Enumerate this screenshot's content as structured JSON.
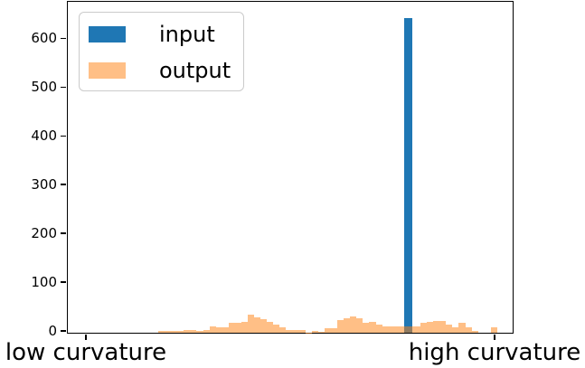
{
  "chart_data": {
    "type": "bar",
    "subtype": "histogram",
    "title": "",
    "xlabel": "",
    "ylabel": "",
    "grid": false,
    "ylim": [
      0,
      675
    ],
    "yticks": [
      0,
      100,
      200,
      300,
      400,
      500,
      600
    ],
    "xticks": [
      {
        "pos": 0.0,
        "label": "low curvature"
      },
      {
        "pos": 1.0,
        "label": "high curvature"
      }
    ],
    "legend": {
      "position": "upper left",
      "entries": [
        {
          "label": "input",
          "swatch": "#1f77b4"
        },
        {
          "label": "output",
          "swatch": "#ffbf86"
        }
      ]
    },
    "series": [
      {
        "name": "input",
        "color": "#1f77b4",
        "description": "single tall spike near high curvature",
        "bins": {
          "start_frac": 0.7788,
          "bin_frac": 0.0199,
          "heights": [
            645
          ]
        }
      },
      {
        "name": "output",
        "color": "rgba(255,127,14,0.5)",
        "description": "broad low histogram of counts along curvature axis",
        "bins": {
          "start_frac": 0.177,
          "bin_frac": 0.01565,
          "heights": [
            3,
            3,
            4,
            4,
            6,
            5,
            4,
            5,
            13,
            12,
            11,
            20,
            20,
            22,
            38,
            32,
            28,
            22,
            16,
            11,
            6,
            5,
            5,
            1,
            4,
            2,
            9,
            10,
            26,
            30,
            33,
            29,
            20,
            23,
            16,
            13,
            13,
            13,
            13,
            13,
            13,
            20,
            22,
            24,
            24,
            16,
            11,
            20,
            11,
            4,
            0,
            0,
            11
          ]
        }
      }
    ]
  }
}
